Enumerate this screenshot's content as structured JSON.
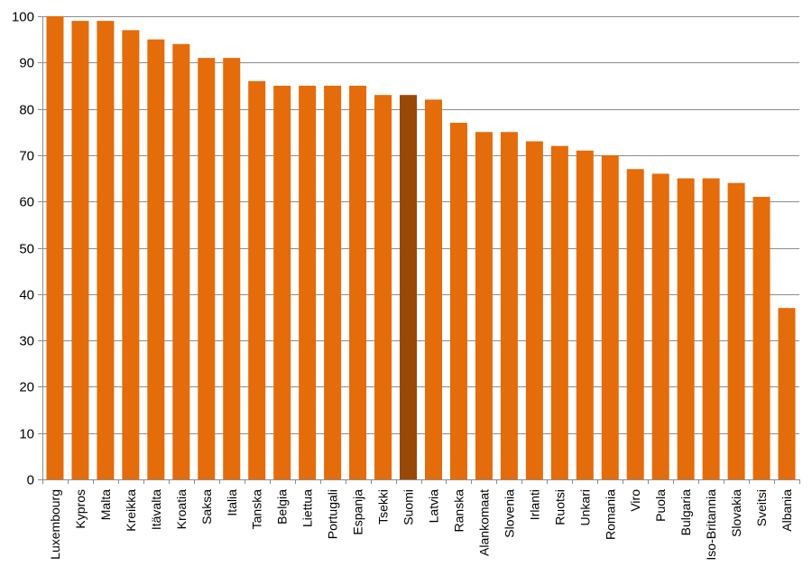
{
  "chart_data": {
    "type": "bar",
    "title": "",
    "xlabel": "",
    "ylabel": "",
    "ylim": [
      0,
      100
    ],
    "yticks": [
      0,
      10,
      20,
      30,
      40,
      50,
      60,
      70,
      80,
      90,
      100
    ],
    "grid": true,
    "legend": "none",
    "bar_color": "#e46c0a",
    "highlight_color": "#984807",
    "highlight_category": "Suomi",
    "categories": [
      "Luxembourg",
      "Kypros",
      "Malta",
      "Kreikka",
      "Itävalta",
      "Kroatia",
      "Saksa",
      "Italia",
      "Tanska",
      "Belgia",
      "Liettua",
      "Portugali",
      "Espanja",
      "Tsekki",
      "Suomi",
      "Latvia",
      "Ranska",
      "Alankomaat",
      "Slovenia",
      "Irlanti",
      "Ruotsi",
      "Unkari",
      "Romania",
      "Viro",
      "Puola",
      "Bulgaria",
      "Iso-Britannia",
      "Slovakia",
      "Sveitsi",
      "Albania"
    ],
    "values": [
      100,
      99,
      99,
      97,
      95,
      94,
      91,
      91,
      86,
      85,
      85,
      85,
      85,
      83,
      83,
      82,
      77,
      75,
      75,
      73,
      72,
      71,
      70,
      67,
      66,
      65,
      65,
      64,
      61,
      37
    ]
  }
}
